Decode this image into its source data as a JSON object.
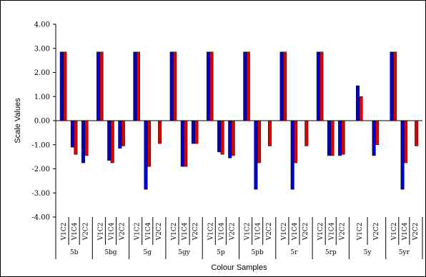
{
  "chart_data": {
    "type": "bar",
    "xlabel": "Colour Samples",
    "ylabel": "Scale Values",
    "ylim": [
      -4.0,
      4.0
    ],
    "yticks": [
      "4.00",
      "3.00",
      "2.00",
      "1.00",
      "0.00",
      "-1.00",
      "-2.00",
      "-3.00",
      "-4.00"
    ],
    "grid": false,
    "colors": {
      "series_a": "#0000cc",
      "series_b": "#dd0000"
    },
    "categories": [
      {
        "name": "5b",
        "subs": [
          "V1C2",
          "V1C4",
          "V2C2"
        ],
        "pairs": [
          [
            2.85,
            2.85
          ],
          [
            -1.1,
            -1.4
          ],
          [
            -1.75,
            -1.45
          ]
        ]
      },
      {
        "name": "5bg",
        "subs": [
          "V1C2",
          "V1C4",
          "V2C2"
        ],
        "pairs": [
          [
            2.85,
            2.85
          ],
          [
            -1.65,
            -1.75
          ],
          [
            -1.15,
            -1.05
          ]
        ]
      },
      {
        "name": "5g",
        "subs": [
          "V1C2",
          "V1C4",
          "V2C2"
        ],
        "pairs": [
          [
            2.85,
            2.85
          ],
          [
            -2.85,
            -1.9
          ],
          [
            null,
            -0.95
          ]
        ]
      },
      {
        "name": "5gy",
        "subs": [
          "V1C2",
          "V1C4",
          "V2C2"
        ],
        "pairs": [
          [
            2.85,
            2.85
          ],
          [
            -1.9,
            -1.9
          ],
          [
            -0.95,
            -0.95
          ]
        ]
      },
      {
        "name": "5p",
        "subs": [
          "V1C2",
          "V1C4",
          "V2C2"
        ],
        "pairs": [
          [
            2.85,
            2.85
          ],
          [
            -1.3,
            -1.4
          ],
          [
            -1.55,
            -1.45
          ]
        ]
      },
      {
        "name": "5pb",
        "subs": [
          "V1C2",
          "V1C4",
          "V2C2"
        ],
        "pairs": [
          [
            2.85,
            2.85
          ],
          [
            -2.85,
            -1.75
          ],
          [
            null,
            -1.05
          ]
        ]
      },
      {
        "name": "5r",
        "subs": [
          "V1C2",
          "V1C4",
          "V2C2"
        ],
        "pairs": [
          [
            2.85,
            2.85
          ],
          [
            -2.85,
            -1.75
          ],
          [
            null,
            -1.05
          ]
        ]
      },
      {
        "name": "5rp",
        "subs": [
          "V1C2",
          "V1C4",
          "V2C2"
        ],
        "pairs": [
          [
            2.85,
            2.85
          ],
          [
            -1.45,
            -1.45
          ],
          [
            -1.45,
            -1.4
          ]
        ]
      },
      {
        "name": "5y",
        "subs": [
          "V1C2",
          "V2C2"
        ],
        "pairs": [
          [
            1.45,
            1.0
          ],
          [
            -1.45,
            -1.0
          ]
        ]
      },
      {
        "name": "5yr",
        "subs": [
          "V1C2",
          "V1C4",
          "V2C2"
        ],
        "pairs": [
          [
            2.85,
            2.85
          ],
          [
            -2.85,
            -1.75
          ],
          [
            null,
            -1.05
          ]
        ]
      }
    ]
  }
}
